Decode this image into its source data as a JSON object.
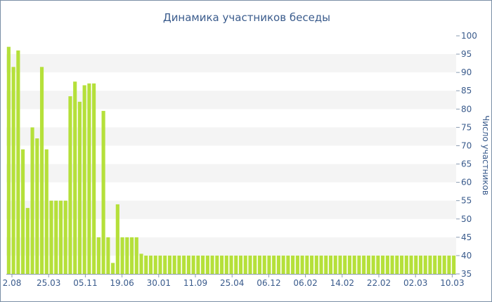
{
  "chart_data": {
    "type": "bar",
    "title": "Динамика участников беседы",
    "ylabel": "Число участников",
    "xlabel": "",
    "ylim": [
      35,
      100
    ],
    "y_ticks": [
      35,
      40,
      45,
      50,
      55,
      60,
      65,
      70,
      75,
      80,
      85,
      90,
      95,
      100
    ],
    "x_tick_labels": [
      "2.08",
      "25.03",
      "05.11",
      "19.06",
      "30.01",
      "11.09",
      "25.04",
      "06.12",
      "06.02",
      "14.02",
      "22.02",
      "02.03",
      "10.03"
    ],
    "bar_color": "#b5e03a",
    "band_color": "#f4f4f4",
    "text_color": "#3a5b8c",
    "grid": "horizontal bands",
    "values": [
      97,
      91.5,
      96,
      69,
      53,
      75,
      72,
      91.5,
      69,
      55,
      55,
      55,
      55,
      83.5,
      87.5,
      82,
      86.5,
      87,
      87,
      45,
      79.5,
      45,
      38,
      54,
      45,
      45,
      45,
      45,
      40.5,
      40,
      40,
      40,
      40,
      40,
      40,
      40,
      40,
      40,
      40,
      40,
      40,
      40,
      40,
      40,
      40,
      40,
      40,
      40,
      40,
      40,
      40,
      40,
      40,
      40,
      40,
      40,
      40,
      40,
      40,
      40,
      40,
      40,
      40,
      40,
      40,
      40,
      40,
      40,
      40,
      40,
      40,
      40,
      40,
      40,
      40,
      40,
      40,
      40,
      40,
      40,
      40,
      40,
      40,
      40,
      40,
      40,
      40,
      40,
      40,
      40,
      40,
      40,
      40,
      40,
      40
    ]
  }
}
